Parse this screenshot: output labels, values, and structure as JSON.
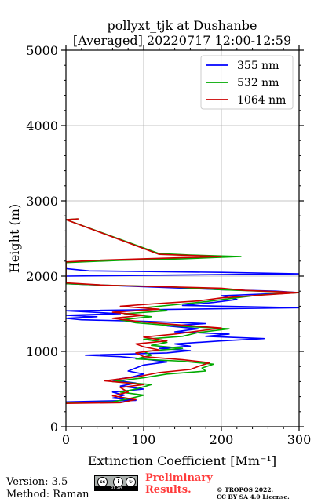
{
  "chart_data": {
    "type": "line",
    "title_line1": "pollyxt_tjk at Dushanbe",
    "title_line2": "[Averaged] 20220717 12:00-12:59",
    "xlabel": "Extinction Coefficient [Mm⁻¹]",
    "ylabel": "Height (m)",
    "xlim": [
      0,
      300
    ],
    "ylim": [
      0,
      5000
    ],
    "xticks": [
      "0",
      "100",
      "200",
      "300"
    ],
    "yticks": [
      "0",
      "1000",
      "2000",
      "3000",
      "4000",
      "5000"
    ],
    "grid": true,
    "legend_position": "top-right",
    "series": [
      {
        "name": "355 nm",
        "color": "#0000ff",
        "points": [
          [
            0,
            330
          ],
          [
            40,
            340
          ],
          [
            90,
            350
          ],
          [
            60,
            380
          ],
          [
            75,
            420
          ],
          [
            60,
            460
          ],
          [
            100,
            500
          ],
          [
            70,
            540
          ],
          [
            90,
            580
          ],
          [
            60,
            620
          ],
          [
            85,
            660
          ],
          [
            100,
            700
          ],
          [
            80,
            740
          ],
          [
            90,
            780
          ],
          [
            100,
            820
          ],
          [
            130,
            860
          ],
          [
            100,
            900
          ],
          [
            70,
            930
          ],
          [
            25,
            950
          ],
          [
            130,
            980
          ],
          [
            160,
            1010
          ],
          [
            120,
            1040
          ],
          [
            160,
            1070
          ],
          [
            140,
            1100
          ],
          [
            200,
            1140
          ],
          [
            255,
            1170
          ],
          [
            180,
            1200
          ],
          [
            210,
            1230
          ],
          [
            140,
            1260
          ],
          [
            170,
            1300
          ],
          [
            130,
            1340
          ],
          [
            180,
            1370
          ],
          [
            100,
            1400
          ],
          [
            20,
            1420
          ],
          [
            0,
            1440
          ],
          [
            40,
            1460
          ],
          [
            0,
            1480
          ],
          [
            70,
            1500
          ],
          [
            0,
            1540
          ],
          [
            300,
            1580
          ],
          [
            150,
            1610
          ],
          [
            190,
            1650
          ],
          [
            220,
            1690
          ],
          [
            200,
            1740
          ],
          [
            300,
            1780
          ],
          [
            270,
            1800
          ],
          [
            200,
            1820
          ],
          [
            0,
            1900
          ],
          [
            0,
            1960
          ],
          [
            0,
            2000
          ],
          [
            300,
            2030
          ],
          [
            200,
            2050
          ],
          [
            30,
            2070
          ],
          [
            0,
            2100
          ]
        ]
      },
      {
        "name": "532 nm",
        "color": "#00aa00",
        "points": [
          [
            0,
            320
          ],
          [
            60,
            330
          ],
          [
            80,
            370
          ],
          [
            100,
            420
          ],
          [
            70,
            460
          ],
          [
            90,
            500
          ],
          [
            110,
            560
          ],
          [
            60,
            600
          ],
          [
            100,
            650
          ],
          [
            130,
            700
          ],
          [
            180,
            740
          ],
          [
            175,
            780
          ],
          [
            190,
            830
          ],
          [
            150,
            870
          ],
          [
            90,
            900
          ],
          [
            110,
            950
          ],
          [
            100,
            1000
          ],
          [
            150,
            1040
          ],
          [
            110,
            1080
          ],
          [
            130,
            1120
          ],
          [
            100,
            1160
          ],
          [
            150,
            1200
          ],
          [
            170,
            1250
          ],
          [
            210,
            1300
          ],
          [
            140,
            1340
          ],
          [
            90,
            1380
          ],
          [
            70,
            1420
          ],
          [
            110,
            1460
          ],
          [
            75,
            1500
          ],
          [
            130,
            1540
          ],
          [
            100,
            1580
          ],
          [
            140,
            1620
          ],
          [
            180,
            1660
          ],
          [
            210,
            1700
          ],
          [
            250,
            1750
          ],
          [
            300,
            1780
          ],
          [
            200,
            1820
          ],
          [
            130,
            1860
          ],
          [
            50,
            1880
          ],
          [
            0,
            1900
          ],
          [
            0,
            2180
          ],
          [
            70,
            2210
          ],
          [
            150,
            2230
          ],
          [
            225,
            2260
          ],
          [
            160,
            2280
          ],
          [
            120,
            2300
          ],
          [
            0,
            2750
          ],
          [
            15,
            2760
          ]
        ]
      },
      {
        "name": "1064 nm",
        "color": "#cc0000",
        "points": [
          [
            0,
            310
          ],
          [
            70,
            320
          ],
          [
            90,
            360
          ],
          [
            60,
            410
          ],
          [
            80,
            460
          ],
          [
            70,
            520
          ],
          [
            100,
            560
          ],
          [
            50,
            610
          ],
          [
            90,
            660
          ],
          [
            120,
            720
          ],
          [
            160,
            760
          ],
          [
            170,
            800
          ],
          [
            185,
            850
          ],
          [
            150,
            890
          ],
          [
            100,
            930
          ],
          [
            90,
            980
          ],
          [
            120,
            1020
          ],
          [
            100,
            1060
          ],
          [
            90,
            1100
          ],
          [
            130,
            1140
          ],
          [
            100,
            1190
          ],
          [
            140,
            1230
          ],
          [
            170,
            1270
          ],
          [
            200,
            1310
          ],
          [
            150,
            1350
          ],
          [
            100,
            1390
          ],
          [
            60,
            1440
          ],
          [
            100,
            1480
          ],
          [
            60,
            1520
          ],
          [
            120,
            1560
          ],
          [
            70,
            1600
          ],
          [
            110,
            1630
          ],
          [
            170,
            1670
          ],
          [
            200,
            1710
          ],
          [
            240,
            1740
          ],
          [
            300,
            1780
          ],
          [
            230,
            1810
          ],
          [
            200,
            1840
          ],
          [
            120,
            1860
          ],
          [
            50,
            1880
          ],
          [
            0,
            1910
          ],
          [
            0,
            1920
          ],
          [
            0,
            2190
          ],
          [
            40,
            2210
          ],
          [
            100,
            2230
          ],
          [
            200,
            2260
          ],
          [
            120,
            2290
          ],
          [
            0,
            2750
          ],
          [
            17,
            2760
          ]
        ]
      }
    ]
  },
  "footer": {
    "version": "Version: 3.5",
    "method": "Method: Raman",
    "prelim_line1": "Preliminary",
    "prelim_line2": "Results.",
    "copyright_line1": "© TROPOS 2022.",
    "copyright_line2": "CC BY SA 4.0 License.",
    "license_badge": "BY  SA",
    "license_icons": [
      "cc-icon",
      "by-icon",
      "sa-icon"
    ]
  }
}
